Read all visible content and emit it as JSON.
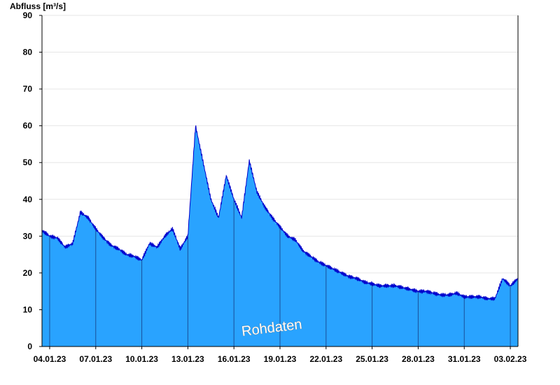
{
  "chart_data": {
    "type": "area",
    "ylabel": "Abfluss [m³/s]",
    "ylim": [
      0,
      90
    ],
    "y_ticks": [
      0,
      10,
      20,
      30,
      40,
      50,
      60,
      70,
      80,
      90
    ],
    "y_tick_labels": [
      "0",
      "10",
      "20",
      "30",
      "40",
      "50",
      "60",
      "70",
      "80",
      "90"
    ],
    "x_start": "03.01.23 12:00",
    "x_end": "03.02.23 12:00",
    "x_ticks": [
      "04.01.23",
      "07.01.23",
      "10.01.23",
      "13.01.23",
      "16.01.23",
      "19.01.23",
      "22.01.23",
      "25.01.23",
      "28.01.23",
      "31.01.23",
      "03.02.23"
    ],
    "watermark": "Rohdaten",
    "grid": true,
    "colors": {
      "fill": "#29a3ff",
      "line": "#0000cc",
      "grid": "#e6e6e6",
      "tick_line": "#1a4f99"
    },
    "series": [
      {
        "x": [
          "03.01.23 12:00",
          "04.01.23 00:00",
          "04.01.23 12:00",
          "05.01.23 00:00",
          "05.01.23 12:00",
          "06.01.23 00:00",
          "06.01.23 12:00",
          "07.01.23 00:00",
          "07.01.23 12:00",
          "08.01.23 00:00",
          "08.01.23 12:00",
          "09.01.23 00:00",
          "09.01.23 12:00",
          "10.01.23 00:00",
          "10.01.23 12:00",
          "11.01.23 00:00",
          "11.01.23 12:00",
          "12.01.23 00:00",
          "12.01.23 12:00",
          "13.01.23 00:00",
          "13.01.23 12:00",
          "14.01.23 00:00",
          "14.01.23 12:00",
          "15.01.23 00:00",
          "15.01.23 12:00",
          "16.01.23 00:00",
          "16.01.23 12:00",
          "17.01.23 00:00",
          "17.01.23 12:00",
          "18.01.23 00:00",
          "18.01.23 12:00",
          "19.01.23 00:00",
          "19.01.23 12:00",
          "20.01.23 00:00",
          "20.01.23 12:00",
          "21.01.23 00:00",
          "21.01.23 12:00",
          "22.01.23 00:00",
          "22.01.23 12:00",
          "23.01.23 00:00",
          "23.01.23 12:00",
          "24.01.23 00:00",
          "24.01.23 12:00",
          "25.01.23 00:00",
          "25.01.23 12:00",
          "26.01.23 00:00",
          "26.01.23 12:00",
          "27.01.23 00:00",
          "27.01.23 12:00",
          "28.01.23 00:00",
          "28.01.23 12:00",
          "29.01.23 00:00",
          "29.01.23 12:00",
          "30.01.23 00:00",
          "30.01.23 12:00",
          "31.01.23 00:00",
          "31.01.23 12:00",
          "01.02.23 00:00",
          "01.02.23 12:00",
          "02.02.23 00:00",
          "02.02.23 12:00",
          "03.02.23 00:00",
          "03.02.23 12:00"
        ],
        "y": [
          31.5,
          30,
          29.5,
          27,
          28,
          36.5,
          35,
          32,
          29.5,
          27.5,
          26.5,
          25,
          24.5,
          23.5,
          28,
          27,
          30,
          32,
          26.5,
          30,
          60,
          50,
          40,
          35,
          46.5,
          40,
          35,
          50.5,
          42,
          38,
          35,
          32.5,
          30,
          29,
          26,
          24.5,
          23,
          22,
          21,
          20,
          19,
          18.5,
          17.5,
          17,
          16.5,
          16.5,
          16.5,
          16,
          15.5,
          15,
          15,
          14.5,
          14,
          14,
          14.5,
          13.5,
          13.5,
          13.5,
          13,
          13,
          18.5,
          16.5,
          18.5
        ]
      }
    ]
  }
}
